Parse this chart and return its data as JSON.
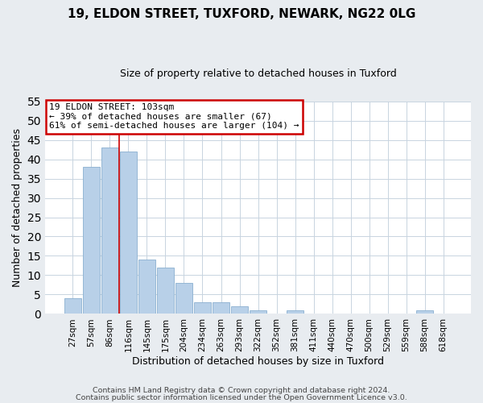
{
  "title1": "19, ELDON STREET, TUXFORD, NEWARK, NG22 0LG",
  "title2": "Size of property relative to detached houses in Tuxford",
  "xlabel": "Distribution of detached houses by size in Tuxford",
  "ylabel": "Number of detached properties",
  "categories": [
    "27sqm",
    "57sqm",
    "86sqm",
    "116sqm",
    "145sqm",
    "175sqm",
    "204sqm",
    "234sqm",
    "263sqm",
    "293sqm",
    "322sqm",
    "352sqm",
    "381sqm",
    "411sqm",
    "440sqm",
    "470sqm",
    "500sqm",
    "529sqm",
    "559sqm",
    "588sqm",
    "618sqm"
  ],
  "values": [
    4,
    38,
    43,
    42,
    14,
    12,
    8,
    3,
    3,
    2,
    1,
    0,
    1,
    0,
    0,
    0,
    0,
    0,
    0,
    1,
    0
  ],
  "bar_color": "#b8d0e8",
  "bar_edge_color": "#8ab0d0",
  "ylim": [
    0,
    55
  ],
  "yticks": [
    0,
    5,
    10,
    15,
    20,
    25,
    30,
    35,
    40,
    45,
    50,
    55
  ],
  "red_line_between": [
    2,
    3
  ],
  "annotation_line1": "19 ELDON STREET: 103sqm",
  "annotation_line2": "← 39% of detached houses are smaller (67)",
  "annotation_line3": "61% of semi-detached houses are larger (104) →",
  "annotation_box_color": "#ffffff",
  "annotation_box_edge_color": "#cc0000",
  "footer1": "Contains HM Land Registry data © Crown copyright and database right 2024.",
  "footer2": "Contains public sector information licensed under the Open Government Licence v3.0.",
  "background_color": "#e8ecf0",
  "plot_bg_color": "#ffffff",
  "grid_color": "#c8d4e0",
  "title_fontsize": 11,
  "subtitle_fontsize": 9,
  "axis_label_fontsize": 9,
  "tick_fontsize": 7.5,
  "annotation_fontsize": 8,
  "footer_fontsize": 6.8
}
